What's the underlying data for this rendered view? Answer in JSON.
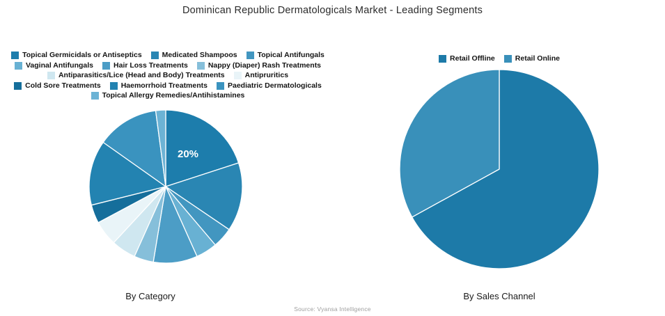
{
  "title": "Dominican Republic Dermatologicals Market - Leading Segments",
  "source": "Source: Vyansa Intelligence",
  "chart_data": [
    {
      "type": "pie",
      "title": "By Category",
      "legend_position": "top",
      "annotation": {
        "text": "20%",
        "slice": "Topical Germicidals or Antiseptics"
      },
      "series": [
        {
          "name": "Topical Germicidals or Antiseptics",
          "value": 20.0,
          "color": "#1d7dac"
        },
        {
          "name": "Medicated Shampoos",
          "value": 14.5,
          "color": "#2a86b3"
        },
        {
          "name": "Topical Antifungals",
          "value": 4.3,
          "color": "#4296c0"
        },
        {
          "name": "Vaginal Antifungals",
          "value": 4.5,
          "color": "#68b1d3"
        },
        {
          "name": "Hair Loss Treatments",
          "value": 9.3,
          "color": "#4c9dc6"
        },
        {
          "name": "Nappy (Diaper) Rash Treatments",
          "value": 4.1,
          "color": "#86bfda"
        },
        {
          "name": "Antiparasitics/Lice (Head and Body) Treatments",
          "value": 5.2,
          "color": "#cfe7f0"
        },
        {
          "name": "Antipruritics",
          "value": 5.3,
          "color": "#e9f4f8"
        },
        {
          "name": "Cold Sore Treatments",
          "value": 3.9,
          "color": "#156e9b"
        },
        {
          "name": "Haemorrhoid Treatments",
          "value": 13.7,
          "color": "#2383b1"
        },
        {
          "name": "Paediatric Dermatologicals",
          "value": 13.1,
          "color": "#3a93bf"
        },
        {
          "name": "Topical Allergy Remedies/Antihistamines",
          "value": 2.1,
          "color": "#6cb3d5"
        }
      ]
    },
    {
      "type": "pie",
      "title": "By Sales Channel",
      "legend_position": "top",
      "series": [
        {
          "name": "Retail Offline",
          "value": 67,
          "color": "#1d7aa8"
        },
        {
          "name": "Retail Online",
          "value": 33,
          "color": "#3990ba"
        }
      ]
    }
  ]
}
